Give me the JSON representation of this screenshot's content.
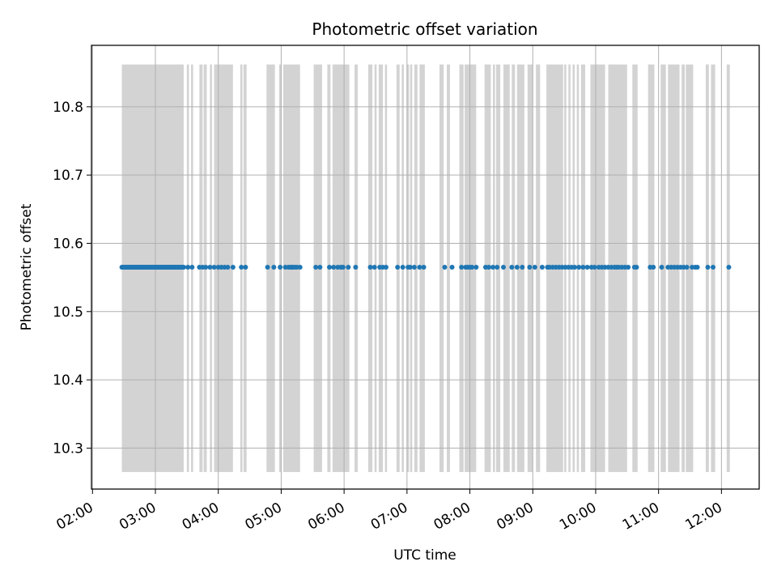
{
  "chart_data": {
    "type": "scatter",
    "title": "Photometric offset variation",
    "xlabel": "UTC time",
    "ylabel": "Photometric offset",
    "xlim": [
      "01:59",
      "12:36"
    ],
    "ylim": [
      10.24,
      10.89
    ],
    "xticks": [
      "02:00",
      "03:00",
      "04:00",
      "05:00",
      "06:00",
      "07:00",
      "08:00",
      "09:00",
      "10:00",
      "11:00",
      "12:00"
    ],
    "yticks": [
      "10.3",
      "10.4",
      "10.5",
      "10.6",
      "10.7",
      "10.8"
    ],
    "grid": true,
    "colors": {
      "points": "#1f77b4",
      "bands": "#d3d3d3",
      "grid": "#b0b0b0"
    },
    "band_y_range": [
      10.265,
      10.862
    ],
    "series": [
      {
        "values": 10.565,
        "x": [
          "02:28",
          "02:29",
          "02:30",
          "02:31",
          "02:32",
          "02:33",
          "02:34",
          "02:35",
          "02:36",
          "02:37",
          "02:38",
          "02:39",
          "02:40",
          "02:41",
          "02:42",
          "02:43",
          "02:44",
          "02:45",
          "02:46",
          "02:47",
          "02:48",
          "02:49",
          "02:50",
          "02:51",
          "02:52",
          "02:53",
          "02:54",
          "02:55",
          "02:56",
          "02:57",
          "02:58",
          "02:59",
          "03:00",
          "03:01",
          "03:02",
          "03:03",
          "03:04",
          "03:05",
          "03:06",
          "03:07",
          "03:08",
          "03:09",
          "03:10",
          "03:11",
          "03:12",
          "03:13",
          "03:14",
          "03:15",
          "03:16",
          "03:17",
          "03:18",
          "03:19",
          "03:20",
          "03:21",
          "03:22",
          "03:23",
          "03:24",
          "03:25",
          "03:26",
          "03:27",
          "03:31",
          "03:35",
          "03:42",
          "03:45",
          "03:48",
          "03:52",
          "03:56",
          "04:00",
          "04:03",
          "04:06",
          "04:09",
          "04:14",
          "04:22",
          "04:26",
          "04:47",
          "04:53",
          "04:59",
          "05:04",
          "05:07",
          "05:09",
          "05:10",
          "05:11",
          "05:13",
          "05:15",
          "05:18",
          "05:33",
          "05:37",
          "05:46",
          "05:50",
          "05:54",
          "05:57",
          "05:59",
          "06:04",
          "06:11",
          "06:25",
          "06:29",
          "06:34",
          "06:37",
          "06:40",
          "06:51",
          "06:56",
          "07:01",
          "07:03",
          "07:07",
          "07:12",
          "07:16",
          "07:36",
          "07:43",
          "07:52",
          "07:56",
          "07:58",
          "08:00",
          "08:02",
          "08:06",
          "08:15",
          "08:18",
          "08:22",
          "08:26",
          "08:32",
          "08:40",
          "08:45",
          "08:50",
          "08:57",
          "09:02",
          "09:09",
          "09:14",
          "09:16",
          "09:19",
          "09:22",
          "09:25",
          "09:28",
          "09:31",
          "09:34",
          "09:37",
          "09:40",
          "09:44",
          "09:48",
          "09:52",
          "09:56",
          "09:59",
          "10:03",
          "10:06",
          "10:09",
          "10:12",
          "10:15",
          "10:18",
          "10:20",
          "10:22",
          "10:25",
          "10:28",
          "10:31",
          "10:37",
          "10:39",
          "10:52",
          "10:55",
          "11:03",
          "11:09",
          "11:12",
          "11:15",
          "11:18",
          "11:21",
          "11:24",
          "11:27",
          "11:32",
          "11:35",
          "11:37",
          "11:47",
          "11:52",
          "12:07"
        ]
      }
    ],
    "bands_x": [
      [
        "02:28",
        "03:27"
      ],
      [
        "03:30",
        "03:32"
      ],
      [
        "03:34",
        "03:36"
      ],
      [
        "03:42",
        "03:45"
      ],
      [
        "03:46",
        "03:49"
      ],
      [
        "03:52",
        "03:54"
      ],
      [
        "03:56",
        "04:14"
      ],
      [
        "04:21",
        "04:23"
      ],
      [
        "04:24",
        "04:27"
      ],
      [
        "04:46",
        "04:54"
      ],
      [
        "04:58",
        "05:00"
      ],
      [
        "05:02",
        "05:18"
      ],
      [
        "05:31",
        "05:39"
      ],
      [
        "05:44",
        "05:47"
      ],
      [
        "05:49",
        "06:05"
      ],
      [
        "06:10",
        "06:13"
      ],
      [
        "06:23",
        "06:27"
      ],
      [
        "06:29",
        "06:31"
      ],
      [
        "06:33",
        "06:37"
      ],
      [
        "06:39",
        "06:41"
      ],
      [
        "06:50",
        "06:53"
      ],
      [
        "06:55",
        "06:57"
      ],
      [
        "07:00",
        "07:02"
      ],
      [
        "07:03",
        "07:05"
      ],
      [
        "07:07",
        "07:10"
      ],
      [
        "07:12",
        "07:17"
      ],
      [
        "07:31",
        "07:35"
      ],
      [
        "07:38",
        "07:41"
      ],
      [
        "07:50",
        "07:54"
      ],
      [
        "07:55",
        "08:06"
      ],
      [
        "08:14",
        "08:20"
      ],
      [
        "08:22",
        "08:24"
      ],
      [
        "08:25",
        "08:29"
      ],
      [
        "08:32",
        "08:38"
      ],
      [
        "08:40",
        "08:43"
      ],
      [
        "08:45",
        "08:52"
      ],
      [
        "08:55",
        "09:00"
      ],
      [
        "09:03",
        "09:07"
      ],
      [
        "09:13",
        "09:29"
      ],
      [
        "09:30",
        "09:32"
      ],
      [
        "09:34",
        "09:36"
      ],
      [
        "09:38",
        "09:40"
      ],
      [
        "09:42",
        "09:44"
      ],
      [
        "09:46",
        "09:50"
      ],
      [
        "09:55",
        "10:09"
      ],
      [
        "10:12",
        "10:30"
      ],
      [
        "10:35",
        "10:40"
      ],
      [
        "10:50",
        "10:56"
      ],
      [
        "11:02",
        "11:07"
      ],
      [
        "11:09",
        "11:20"
      ],
      [
        "11:22",
        "11:25"
      ],
      [
        "11:26",
        "11:33"
      ],
      [
        "11:45",
        "11:48"
      ],
      [
        "11:50",
        "11:54"
      ],
      [
        "12:05",
        "12:08"
      ]
    ]
  }
}
